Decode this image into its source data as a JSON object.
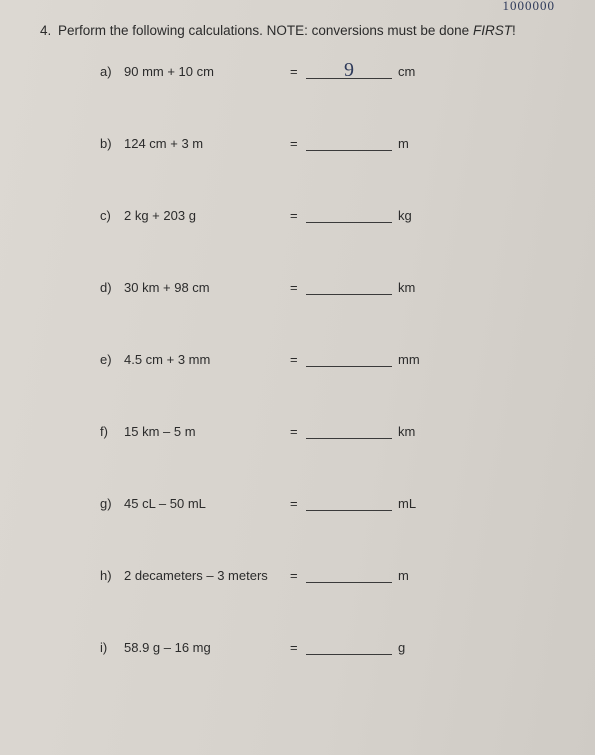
{
  "top_scribble": "1000000",
  "question_number": "4.",
  "instruction_prefix": "Perform the following calculations. NOTE: conversions must be done ",
  "instruction_emph": "FIRST",
  "instruction_suffix": "!",
  "items": [
    {
      "letter": "a)",
      "expr": "90 mm + 10 cm",
      "answer": "9",
      "unit": "cm"
    },
    {
      "letter": "b)",
      "expr": "124 cm + 3 m",
      "answer": "",
      "unit": "m"
    },
    {
      "letter": "c)",
      "expr": "2 kg + 203 g",
      "answer": "",
      "unit": "kg"
    },
    {
      "letter": "d)",
      "expr": "30 km + 98 cm",
      "answer": "",
      "unit": "km"
    },
    {
      "letter": "e)",
      "expr": "4.5 cm + 3 mm",
      "answer": "",
      "unit": "mm"
    },
    {
      "letter": "f)",
      "expr": "15 km – 5 m",
      "answer": "",
      "unit": "km"
    },
    {
      "letter": "g)",
      "expr": "45 cL – 50 mL",
      "answer": "",
      "unit": "mL"
    },
    {
      "letter": "h)",
      "expr": "2 decameters – 3 meters",
      "answer": "",
      "unit": "m"
    },
    {
      "letter": "i)",
      "expr": "58.9 g – 16 mg",
      "answer": "",
      "unit": "g"
    }
  ]
}
